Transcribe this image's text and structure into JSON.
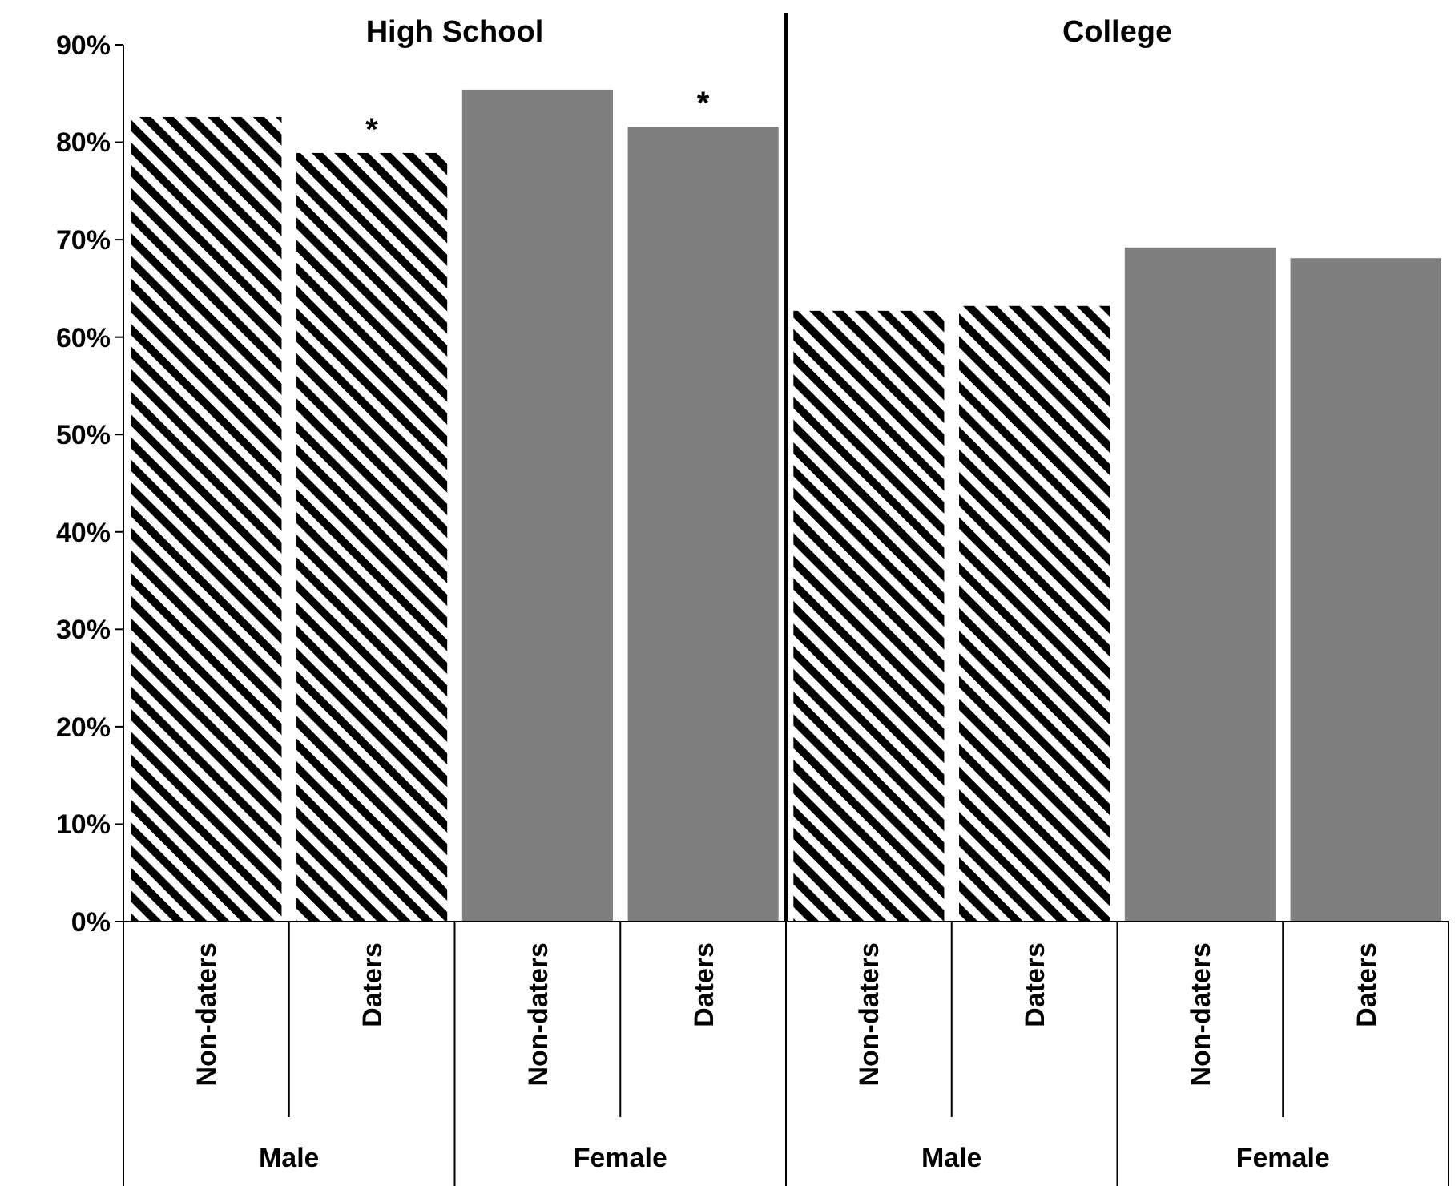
{
  "chart_data": {
    "type": "bar",
    "categories": [
      "Non-daters",
      "Daters",
      "Non-daters",
      "Daters",
      "Non-daters",
      "Daters",
      "Non-daters",
      "Daters"
    ],
    "values": [
      82.6,
      78.9,
      85.4,
      81.6,
      62.7,
      63.2,
      69.2,
      68.1
    ],
    "colors": [
      "#000000",
      "#000000",
      "#7f7f7f",
      "#7f7f7f",
      "#000000",
      "#000000",
      "#7f7f7f",
      "#7f7f7f"
    ],
    "value_labels": [
      null,
      "*",
      null,
      "*",
      null,
      null,
      null,
      null
    ],
    "ylim": [
      0,
      90
    ],
    "yticks": [
      {
        "value": 0,
        "label": "0%"
      },
      {
        "value": 10,
        "label": "10%"
      },
      {
        "value": 20,
        "label": "20%"
      },
      {
        "value": 30,
        "label": "30%"
      },
      {
        "value": 40,
        "label": "40%"
      },
      {
        "value": 50,
        "label": "50%"
      },
      {
        "value": 60,
        "label": "60%"
      },
      {
        "value": 70,
        "label": "70%"
      },
      {
        "value": 80,
        "label": "80%"
      },
      {
        "value": 90,
        "label": "90%"
      }
    ],
    "annotations": [
      "High School",
      "College",
      "Male",
      "Female",
      "Male",
      "Female"
    ],
    "grid": false
  }
}
